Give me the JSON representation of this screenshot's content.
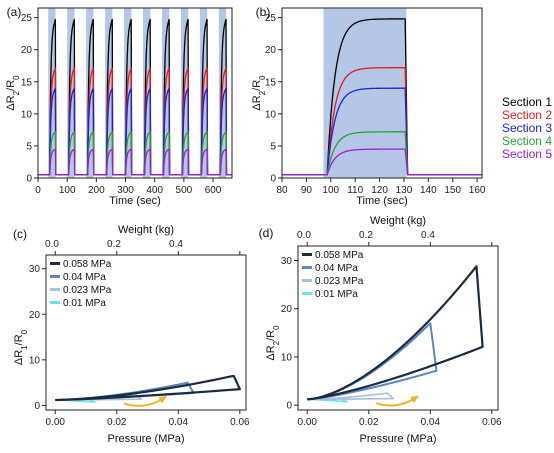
{
  "chart_data": [
    {
      "panel": "(a)",
      "type": "line",
      "xlabel": "Time (sec)",
      "ylabel": "ΔR2/R0",
      "xlim": [
        0,
        665
      ],
      "ylim": [
        0,
        26.5
      ],
      "xticks": [
        0,
        100,
        200,
        300,
        400,
        500,
        600
      ],
      "yticks": [
        0,
        5,
        10,
        15,
        20,
        25
      ],
      "shaded_intervals": [
        [
          35,
          60
        ],
        [
          100,
          125
        ],
        [
          165,
          190
        ],
        [
          230,
          255
        ],
        [
          295,
          320
        ],
        [
          360,
          385
        ],
        [
          425,
          450
        ],
        [
          490,
          515
        ],
        [
          555,
          580
        ],
        [
          620,
          645
        ]
      ],
      "series": [
        {
          "name": "Section 1",
          "color": "#000000",
          "plateau": 24.8
        },
        {
          "name": "Section 2",
          "color": "#e41a1c",
          "plateau": 17.2
        },
        {
          "name": "Section 3",
          "color": "#2020d0",
          "plateau": 14.0
        },
        {
          "name": "Section 4",
          "color": "#2ca02c",
          "plateau": 7.2
        },
        {
          "name": "Section 5",
          "color": "#9a20d0",
          "plateau": 4.5
        }
      ]
    },
    {
      "panel": "(b)",
      "type": "line",
      "xlabel": "Time (sec)",
      "ylabel": "ΔR2/R0",
      "xlim": [
        80,
        162
      ],
      "ylim": [
        0,
        26.5
      ],
      "xticks": [
        80,
        90,
        100,
        110,
        120,
        130,
        140,
        150,
        160
      ],
      "yticks": [
        0,
        5,
        10,
        15,
        20,
        25
      ],
      "shaded_interval": [
        97,
        131
      ],
      "series": [
        {
          "name": "Section 1",
          "color": "#000000",
          "plateau": 24.8
        },
        {
          "name": "Section 2",
          "color": "#e41a1c",
          "plateau": 17.2
        },
        {
          "name": "Section 3",
          "color": "#2020d0",
          "plateau": 14.0
        },
        {
          "name": "Section 4",
          "color": "#2ca02c",
          "plateau": 7.2
        },
        {
          "name": "Section 5",
          "color": "#9a20d0",
          "plateau": 4.5
        }
      ]
    },
    {
      "panel": "(c)",
      "type": "line",
      "xlabel": "Pressure (MPa)",
      "x2label": "Weight (kg)",
      "ylabel": "ΔR1/R0",
      "xlim": [
        -0.003,
        0.062
      ],
      "ylim": [
        -1,
        33
      ],
      "xticks": [
        0.0,
        0.02,
        0.04,
        0.06
      ],
      "x2ticks": [
        0.0,
        0.2,
        0.4
      ],
      "yticks": [
        0,
        10,
        20,
        30
      ],
      "series": [
        {
          "name": "0.058 MPa",
          "color": "#1a2a40",
          "peak_x": 0.058,
          "peak_y": 6.5
        },
        {
          "name": "0.04 MPa",
          "color": "#5b86c4",
          "peak_x": 0.043,
          "peak_y": 5.0
        },
        {
          "name": "0.023 MPa",
          "color": "#a6bfdc",
          "peak_x": 0.026,
          "peak_y": 2.5
        },
        {
          "name": "0.01 MPa",
          "color": "#6fe3ec",
          "peak_x": 0.011,
          "peak_y": 1.3
        }
      ]
    },
    {
      "panel": "(d)",
      "type": "line",
      "xlabel": "Pressure (MPa)",
      "x2label": "Weight (kg)",
      "ylabel": "ΔR2/R0",
      "xlim": [
        -0.003,
        0.062
      ],
      "ylim": [
        -1,
        33
      ],
      "xticks": [
        0.0,
        0.02,
        0.04,
        0.06
      ],
      "x2ticks": [
        0.0,
        0.2,
        0.4
      ],
      "yticks": [
        0,
        10,
        20,
        30
      ],
      "series": [
        {
          "name": "0.058 MPa",
          "color": "#1a2a40",
          "peak_x": 0.055,
          "peak_y": 28.8
        },
        {
          "name": "0.04 MPa",
          "color": "#5b86c4",
          "peak_x": 0.04,
          "peak_y": 17.0
        },
        {
          "name": "0.023 MPa",
          "color": "#a6bfdc",
          "peak_x": 0.026,
          "peak_y": 2.5
        },
        {
          "name": "0.01 MPa",
          "color": "#6fe3ec",
          "peak_x": 0.011,
          "peak_y": 1.3
        }
      ]
    }
  ],
  "legend_sections": [
    "Section 1",
    "Section 2",
    "Section 3",
    "Section 4",
    "Section 5"
  ],
  "colors": {
    "shade": "#b4c7e7",
    "arrow": "#f0b429"
  }
}
